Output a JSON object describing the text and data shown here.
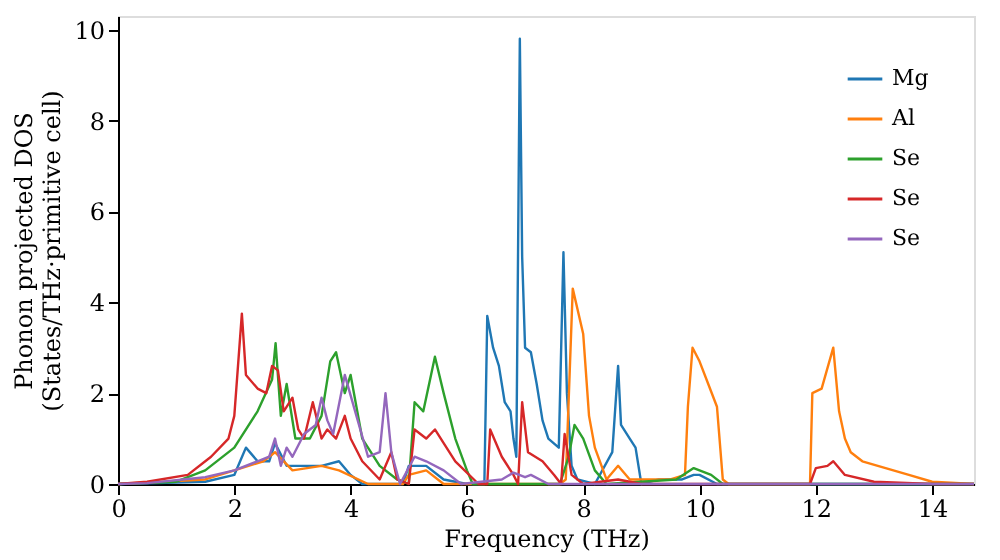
{
  "chart_data": {
    "type": "line",
    "xlabel": "Frequency (THz)",
    "ylabel": "Phonon projected DOS\n(States/THz·primitive cell)",
    "xlim": [
      0,
      14.72
    ],
    "ylim": [
      0,
      10.3
    ],
    "xticks": [
      0,
      2,
      4,
      6,
      8,
      10,
      12,
      14
    ],
    "yticks": [
      0,
      2,
      4,
      6,
      8,
      10
    ],
    "grid": false,
    "legend": "top right",
    "line_style": "solid",
    "marker": "none",
    "series": [
      {
        "name": "Mg",
        "color": "#1f77b4",
        "x": [
          0,
          1.5,
          2.0,
          2.1,
          2.2,
          2.4,
          2.6,
          2.7,
          2.9,
          3.2,
          3.5,
          3.8,
          4.0,
          4.2,
          4.9,
          5.0,
          5.3,
          5.6,
          6.0,
          6.3,
          6.35,
          6.45,
          6.55,
          6.65,
          6.75,
          6.8,
          6.85,
          6.91,
          6.95,
          7.0,
          7.1,
          7.2,
          7.3,
          7.4,
          7.58,
          7.66,
          7.72,
          7.8,
          7.9,
          8.2,
          8.5,
          8.6,
          8.65,
          8.8,
          8.9,
          9.0,
          9.3,
          9.5,
          9.7,
          9.9,
          10.0,
          10.3,
          14.72
        ],
        "values": [
          0,
          0.05,
          0.2,
          0.5,
          0.8,
          0.5,
          0.5,
          0.9,
          0.4,
          0.4,
          0.4,
          0.5,
          0.2,
          0,
          0,
          0.4,
          0.4,
          0.1,
          0,
          0,
          3.7,
          3.0,
          2.6,
          1.8,
          1.6,
          1.0,
          0.6,
          9.8,
          5.0,
          3.0,
          2.9,
          2.2,
          1.4,
          1.0,
          0.8,
          5.1,
          2.0,
          0.4,
          0.1,
          0,
          0.7,
          2.6,
          1.3,
          1.0,
          0.8,
          0,
          0.1,
          0.1,
          0.1,
          0.2,
          0.2,
          0,
          0
        ]
      },
      {
        "name": "Al",
        "color": "#ff7f0e",
        "x": [
          0,
          1.5,
          2.0,
          2.5,
          2.7,
          3.0,
          3.5,
          3.8,
          4.3,
          4.9,
          5.0,
          5.3,
          5.6,
          7.6,
          7.7,
          7.82,
          8.0,
          8.1,
          8.2,
          8.4,
          8.6,
          8.8,
          9.5,
          9.75,
          9.8,
          9.88,
          10.0,
          10.15,
          10.3,
          10.4,
          10.5,
          11.9,
          11.94,
          12.1,
          12.3,
          12.4,
          12.5,
          12.6,
          12.8,
          13.2,
          13.6,
          14.0,
          14.72
        ],
        "values": [
          0,
          0.1,
          0.3,
          0.5,
          0.7,
          0.3,
          0.4,
          0.3,
          0,
          0,
          0.2,
          0.3,
          0,
          0,
          0.1,
          4.3,
          3.3,
          1.5,
          0.8,
          0.1,
          0.4,
          0.1,
          0.1,
          0.2,
          1.7,
          3.0,
          2.7,
          2.2,
          1.7,
          0.1,
          0,
          0,
          2.0,
          2.1,
          3.0,
          1.6,
          1.0,
          0.7,
          0.5,
          0.35,
          0.2,
          0.05,
          0
        ]
      },
      {
        "name": "Se",
        "color": "#2ca02c",
        "x": [
          0,
          1.0,
          1.5,
          2.0,
          2.4,
          2.65,
          2.71,
          2.8,
          2.9,
          3.05,
          3.3,
          3.5,
          3.65,
          3.75,
          3.9,
          4.0,
          4.2,
          4.5,
          4.8,
          5.0,
          5.1,
          5.25,
          5.45,
          5.6,
          5.8,
          6.0,
          6.1,
          7.6,
          7.75,
          7.85,
          8.0,
          8.2,
          8.4,
          9.6,
          9.9,
          10.2,
          10.4,
          14.72
        ],
        "values": [
          0,
          0.05,
          0.3,
          0.8,
          1.6,
          2.3,
          3.1,
          1.5,
          2.2,
          1.0,
          1.0,
          1.5,
          2.7,
          2.9,
          2.0,
          2.4,
          1.0,
          0.4,
          0.1,
          0,
          1.8,
          1.6,
          2.8,
          2.0,
          1.0,
          0.3,
          0,
          0,
          0.6,
          1.3,
          1.0,
          0.3,
          0,
          0.1,
          0.35,
          0.2,
          0,
          0
        ]
      },
      {
        "name": "Se",
        "color": "#d62728",
        "x": [
          0,
          0.5,
          1.2,
          1.6,
          1.9,
          2.0,
          2.13,
          2.2,
          2.4,
          2.55,
          2.65,
          2.75,
          2.85,
          3.0,
          3.1,
          3.2,
          3.35,
          3.5,
          3.6,
          3.75,
          3.9,
          4.0,
          4.2,
          4.5,
          4.7,
          4.8,
          5.0,
          5.1,
          5.3,
          5.45,
          5.6,
          5.8,
          6.2,
          6.35,
          6.4,
          6.6,
          6.8,
          6.88,
          6.95,
          7.05,
          7.3,
          7.5,
          7.62,
          7.68,
          7.8,
          8.0,
          8.6,
          9.0,
          11.9,
          12.0,
          12.2,
          12.3,
          12.5,
          13.0,
          14.0,
          14.72
        ],
        "values": [
          0,
          0.05,
          0.2,
          0.6,
          1.0,
          1.5,
          3.75,
          2.4,
          2.1,
          2.0,
          2.6,
          2.5,
          1.6,
          1.9,
          1.2,
          1.0,
          1.8,
          1.0,
          1.2,
          1.0,
          1.5,
          1.0,
          0.5,
          0.1,
          0.7,
          0.1,
          0,
          1.2,
          1.0,
          1.2,
          0.9,
          0.5,
          0,
          0,
          1.2,
          0.6,
          0.2,
          0,
          1.8,
          0.7,
          0.5,
          0.2,
          0,
          1.1,
          0.2,
          0,
          0.1,
          0,
          0,
          0.35,
          0.4,
          0.5,
          0.2,
          0.05,
          0,
          0
        ]
      },
      {
        "name": "Se",
        "color": "#9467bd",
        "x": [
          0,
          0.5,
          1.5,
          2.0,
          2.4,
          2.6,
          2.7,
          2.8,
          2.9,
          3.0,
          3.2,
          3.4,
          3.5,
          3.6,
          3.7,
          3.9,
          4.1,
          4.3,
          4.5,
          4.6,
          4.7,
          4.85,
          5.1,
          5.3,
          5.6,
          5.9,
          6.6,
          6.8,
          7.0,
          7.1,
          7.4,
          14.72
        ],
        "values": [
          0,
          0.02,
          0.15,
          0.3,
          0.5,
          0.6,
          1.0,
          0.4,
          0.8,
          0.6,
          1.1,
          1.3,
          1.9,
          1.4,
          1.1,
          2.4,
          1.5,
          0.6,
          0.7,
          2.0,
          0.7,
          0,
          0.6,
          0.5,
          0.3,
          0,
          0.1,
          0.25,
          0.15,
          0.2,
          0,
          0
        ]
      }
    ]
  }
}
